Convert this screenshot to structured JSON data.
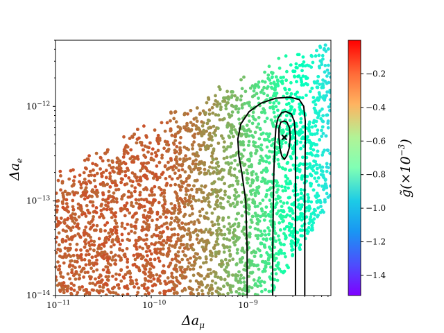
{
  "chart_data": {
    "type": "scatter",
    "title": "",
    "xlabel": "Δa",
    "xlabel_sub": "μ",
    "ylabel": "Δa",
    "ylabel_sub": "e",
    "xscale": "log",
    "yscale": "log",
    "xlim": [
      1e-11,
      7.5e-09
    ],
    "ylim": [
      1e-14,
      5e-12
    ],
    "x_ticks": [
      {
        "value": 1e-11,
        "base": "10",
        "exp": "−11"
      },
      {
        "value": 1e-10,
        "base": "10",
        "exp": "−10"
      },
      {
        "value": 1e-09,
        "base": "10",
        "exp": "−9"
      }
    ],
    "y_ticks": [
      {
        "value": 1e-14,
        "base": "10",
        "exp": "−14"
      },
      {
        "value": 1e-13,
        "base": "10",
        "exp": "−13"
      },
      {
        "value": 1e-12,
        "base": "10",
        "exp": "−12"
      }
    ],
    "grid": false,
    "colorbar": {
      "label": "g̃(×10",
      "label_exp": "−3",
      "label_close": ")",
      "range": [
        -1.52,
        0.0
      ],
      "colormap": "rainbow",
      "ticks": [
        {
          "value": -0.2,
          "label": "−0.2"
        },
        {
          "value": -0.4,
          "label": "−0.4"
        },
        {
          "value": -0.6,
          "label": "−0.6"
        },
        {
          "value": -0.8,
          "label": "−0.8"
        },
        {
          "value": -1.0,
          "label": "−1.0"
        },
        {
          "value": -1.2,
          "label": "−1.2"
        },
        {
          "value": -1.4,
          "label": "−1.4"
        }
      ]
    },
    "best_fit": {
      "x": 2.45e-09,
      "y": 4.7e-13,
      "marker": "x"
    },
    "contours": [
      {
        "level": 1,
        "points": [
          [
            2.15e-09,
            4.7e-13
          ],
          [
            2.2e-09,
            3.6e-13
          ],
          [
            2.3e-09,
            3e-13
          ],
          [
            2.45e-09,
            2.75e-13
          ],
          [
            2.6e-09,
            3e-13
          ],
          [
            2.75e-09,
            3.6e-13
          ],
          [
            2.82e-09,
            4.7e-13
          ],
          [
            2.78e-09,
            5.9e-13
          ],
          [
            2.6e-09,
            6.8e-13
          ],
          [
            2.45e-09,
            7e-13
          ],
          [
            2.25e-09,
            6.8e-13
          ],
          [
            2.15e-09,
            5.9e-13
          ]
        ]
      },
      {
        "level": 2,
        "points": [
          [
            1.85e-09,
            1e-14
          ],
          [
            1.85e-09,
            3e-14
          ],
          [
            1.88e-09,
            1e-13
          ],
          [
            1.9e-09,
            2e-13
          ],
          [
            1.95e-09,
            4e-13
          ],
          [
            2e-09,
            6e-13
          ],
          [
            2.1e-09,
            7.5e-13
          ],
          [
            2.3e-09,
            8.6e-13
          ],
          [
            2.55e-09,
            8.8e-13
          ],
          [
            2.9e-09,
            8.3e-13
          ],
          [
            3.1e-09,
            7e-13
          ],
          [
            3.2e-09,
            5e-13
          ],
          [
            3.2e-09,
            3e-13
          ],
          [
            3.2e-09,
            1e-13
          ],
          [
            3.2e-09,
            1e-14
          ]
        ]
      },
      {
        "level": 3,
        "points": [
          [
            1e-09,
            1e-14
          ],
          [
            1e-09,
            3e-14
          ],
          [
            9.7e-10,
            1e-13
          ],
          [
            8.8e-10,
            2e-13
          ],
          [
            8.2e-10,
            3e-13
          ],
          [
            8e-10,
            4.5e-13
          ],
          [
            8.6e-10,
            6.5e-13
          ],
          [
            1.05e-09,
            8.8e-13
          ],
          [
            1.4e-09,
            1.08e-12
          ],
          [
            2e-09,
            1.22e-12
          ],
          [
            2.8e-09,
            1.25e-12
          ],
          [
            3.5e-09,
            1.18e-12
          ],
          [
            3.9e-09,
            1e-12
          ],
          [
            4.05e-09,
            7e-13
          ],
          [
            4.05e-09,
            4e-13
          ],
          [
            4e-09,
            1e-13
          ],
          [
            4e-09,
            1e-14
          ]
        ]
      }
    ],
    "scatter_points_shown": "dense cloud of points colored by g̃"
  }
}
